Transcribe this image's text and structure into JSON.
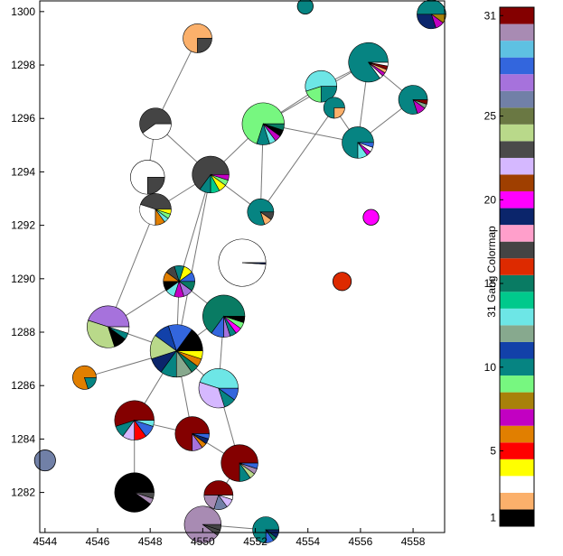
{
  "chart_data": [
    {
      "type": "scatter",
      "marker": "pie",
      "title": "",
      "xlabel": "",
      "ylabel": "",
      "xlim": [
        4543.8,
        4559.2
      ],
      "ylim": [
        1280.5,
        1300.4
      ],
      "x_ticks": [
        4544,
        4546,
        4548,
        4550,
        4552,
        4554,
        4556,
        4558
      ],
      "y_ticks": [
        1282,
        1284,
        1286,
        1288,
        1290,
        1292,
        1294,
        1296,
        1298,
        1300
      ],
      "grid": false,
      "nodes": [
        {
          "id": "n1",
          "x": 4549.8,
          "y": 1299.0,
          "r": 0.55,
          "slices": [
            {
              "c": 2,
              "v": 0.75
            },
            {
              "c": 17,
              "v": 0.25
            }
          ]
        },
        {
          "id": "n2",
          "x": 4553.9,
          "y": 1300.2,
          "r": 0.3,
          "slices": [
            {
              "c": 10,
              "v": 1
            }
          ]
        },
        {
          "id": "n3",
          "x": 4558.7,
          "y": 1299.9,
          "r": 0.55,
          "slices": [
            {
              "c": 10,
              "v": 0.5
            },
            {
              "c": 19,
              "v": 0.3
            },
            {
              "c": 7,
              "v": 0.1
            },
            {
              "c": 8,
              "v": 0.1
            }
          ]
        },
        {
          "id": "n4",
          "x": 4556.3,
          "y": 1298.1,
          "r": 0.75,
          "slices": [
            {
              "c": 10,
              "v": 0.85
            },
            {
              "c": 3,
              "v": 0.03
            },
            {
              "c": 7,
              "v": 0.03
            },
            {
              "c": 2,
              "v": 0.03
            },
            {
              "c": 31,
              "v": 0.03
            },
            {
              "c": 0,
              "v": 0.03
            }
          ]
        },
        {
          "id": "n5",
          "x": 4554.5,
          "y": 1297.2,
          "r": 0.6,
          "slices": [
            {
              "c": 13,
              "v": 0.55
            },
            {
              "c": 9,
              "v": 0.2
            },
            {
              "c": 10,
              "v": 0.25
            }
          ]
        },
        {
          "id": "n6",
          "x": 4555.0,
          "y": 1296.4,
          "r": 0.4,
          "slices": [
            {
              "c": 10,
              "v": 0.75
            },
            {
              "c": 2,
              "v": 0.25
            }
          ]
        },
        {
          "id": "n7",
          "x": 4558.0,
          "y": 1296.7,
          "r": 0.55,
          "slices": [
            {
              "c": 10,
              "v": 0.8
            },
            {
              "c": 7,
              "v": 0.1
            },
            {
              "c": 12,
              "v": 0.05
            },
            {
              "c": 31,
              "v": 0.05
            }
          ]
        },
        {
          "id": "n8",
          "x": 4552.3,
          "y": 1295.8,
          "r": 0.8,
          "slices": [
            {
              "c": 9,
              "v": 0.7
            },
            {
              "c": 10,
              "v": 0.1
            },
            {
              "c": 13,
              "v": 0.05
            },
            {
              "c": 7,
              "v": 0.05
            },
            {
              "c": 1,
              "v": 0.05
            },
            {
              "c": 15,
              "v": 0.05
            }
          ]
        },
        {
          "id": "n9",
          "x": 4555.9,
          "y": 1295.1,
          "r": 0.6,
          "slices": [
            {
              "c": 10,
              "v": 0.75
            },
            {
              "c": 13,
              "v": 0.1
            },
            {
              "c": 7,
              "v": 0.05
            },
            {
              "c": 0,
              "v": 0.05
            },
            {
              "c": 28,
              "v": 0.05
            }
          ]
        },
        {
          "id": "n10",
          "x": 4548.2,
          "y": 1295.8,
          "r": 0.6,
          "slices": [
            {
              "c": 17,
              "v": 0.6
            },
            {
              "c": 3,
              "v": 0.4
            }
          ]
        },
        {
          "id": "n11",
          "x": 4547.9,
          "y": 1293.8,
          "r": 0.65,
          "slices": [
            {
              "c": 3,
              "v": 0.75
            },
            {
              "c": 17,
              "v": 0.25
            }
          ]
        },
        {
          "id": "n12",
          "x": 4550.3,
          "y": 1293.9,
          "r": 0.7,
          "slices": [
            {
              "c": 17,
              "v": 0.65
            },
            {
              "c": 10,
              "v": 0.1
            },
            {
              "c": 14,
              "v": 0.08
            },
            {
              "c": 4,
              "v": 0.07
            },
            {
              "c": 9,
              "v": 0.05
            },
            {
              "c": 7,
              "v": 0.05
            }
          ]
        },
        {
          "id": "n13",
          "x": 4548.2,
          "y": 1292.6,
          "r": 0.6,
          "slices": [
            {
              "c": 17,
              "v": 0.45
            },
            {
              "c": 3,
              "v": 0.3
            },
            {
              "c": 6,
              "v": 0.1
            },
            {
              "c": 13,
              "v": 0.05
            },
            {
              "c": 9,
              "v": 0.05
            },
            {
              "c": 4,
              "v": 0.05
            }
          ]
        },
        {
          "id": "n14",
          "x": 4552.2,
          "y": 1292.5,
          "r": 0.5,
          "slices": [
            {
              "c": 10,
              "v": 0.8
            },
            {
              "c": 2,
              "v": 0.1
            },
            {
              "c": 17,
              "v": 0.1
            }
          ]
        },
        {
          "id": "n15",
          "x": 4556.4,
          "y": 1292.3,
          "r": 0.3,
          "slices": [
            {
              "c": 20,
              "v": 1
            }
          ]
        },
        {
          "id": "n16",
          "x": 4551.5,
          "y": 1290.6,
          "r": 0.9,
          "slices": [
            {
              "c": 0,
              "v": 0.99
            },
            {
              "c": 19,
              "v": 0.01
            }
          ]
        },
        {
          "id": "n17",
          "x": 4555.3,
          "y": 1289.9,
          "r": 0.35,
          "slices": [
            {
              "c": 16,
              "v": 1
            }
          ]
        },
        {
          "id": "n18",
          "x": 4549.1,
          "y": 1289.9,
          "r": 0.6,
          "slices": [
            {
              "c": 28,
              "v": 0.1
            },
            {
              "c": 4,
              "v": 0.1
            },
            {
              "c": 10,
              "v": 0.1
            },
            {
              "c": 17,
              "v": 0.1
            },
            {
              "c": 6,
              "v": 0.1
            },
            {
              "c": 1,
              "v": 0.1
            },
            {
              "c": 13,
              "v": 0.1
            },
            {
              "c": 7,
              "v": 0.1
            },
            {
              "c": 27,
              "v": 0.1
            },
            {
              "c": 15,
              "v": 0.1
            }
          ]
        },
        {
          "id": "n19",
          "x": 4550.8,
          "y": 1288.6,
          "r": 0.8,
          "slices": [
            {
              "c": 15,
              "v": 0.65
            },
            {
              "c": 28,
              "v": 0.1
            },
            {
              "c": 27,
              "v": 0.05
            },
            {
              "c": 10,
              "v": 0.05
            },
            {
              "c": 20,
              "v": 0.05
            },
            {
              "c": 9,
              "v": 0.05
            },
            {
              "c": 1,
              "v": 0.05
            }
          ]
        },
        {
          "id": "n20",
          "x": 4546.4,
          "y": 1288.2,
          "r": 0.8,
          "slices": [
            {
              "c": 27,
              "v": 0.45
            },
            {
              "c": 24,
              "v": 0.35
            },
            {
              "c": 1,
              "v": 0.1
            },
            {
              "c": 10,
              "v": 0.05
            },
            {
              "c": 0,
              "v": 0.05
            }
          ]
        },
        {
          "id": "n21",
          "x": 4549.0,
          "y": 1287.3,
          "r": 1.0,
          "slices": [
            {
              "c": 1,
              "v": 0.15
            },
            {
              "c": 28,
              "v": 0.15
            },
            {
              "c": 11,
              "v": 0.1
            },
            {
              "c": 24,
              "v": 0.15
            },
            {
              "c": 19,
              "v": 0.1
            },
            {
              "c": 10,
              "v": 0.1
            },
            {
              "c": 12,
              "v": 0.1
            },
            {
              "c": 15,
              "v": 0.05
            },
            {
              "c": 6,
              "v": 0.05
            },
            {
              "c": 4,
              "v": 0.05
            }
          ]
        },
        {
          "id": "n22",
          "x": 4545.5,
          "y": 1286.3,
          "r": 0.45,
          "slices": [
            {
              "c": 6,
              "v": 0.8
            },
            {
              "c": 10,
              "v": 0.2
            }
          ]
        },
        {
          "id": "n23",
          "x": 4550.6,
          "y": 1285.9,
          "r": 0.75,
          "slices": [
            {
              "c": 13,
              "v": 0.45
            },
            {
              "c": 22,
              "v": 0.35
            },
            {
              "c": 10,
              "v": 0.1
            },
            {
              "c": 28,
              "v": 0.1
            }
          ]
        },
        {
          "id": "n24",
          "x": 4547.4,
          "y": 1284.7,
          "r": 0.75,
          "slices": [
            {
              "c": 31,
              "v": 0.55
            },
            {
              "c": 10,
              "v": 0.1
            },
            {
              "c": 22,
              "v": 0.1
            },
            {
              "c": 5,
              "v": 0.1
            },
            {
              "c": 28,
              "v": 0.1
            },
            {
              "c": 13,
              "v": 0.05
            }
          ]
        },
        {
          "id": "n25",
          "x": 4549.6,
          "y": 1284.2,
          "r": 0.65,
          "slices": [
            {
              "c": 31,
              "v": 0.75
            },
            {
              "c": 27,
              "v": 0.1
            },
            {
              "c": 6,
              "v": 0.05
            },
            {
              "c": 19,
              "v": 0.05
            },
            {
              "c": 28,
              "v": 0.05
            }
          ]
        },
        {
          "id": "n26",
          "x": 4544.0,
          "y": 1283.2,
          "r": 0.4,
          "slices": [
            {
              "c": 26,
              "v": 1
            }
          ]
        },
        {
          "id": "n27",
          "x": 4551.4,
          "y": 1283.1,
          "r": 0.7,
          "slices": [
            {
              "c": 31,
              "v": 0.75
            },
            {
              "c": 10,
              "v": 0.1
            },
            {
              "c": 24,
              "v": 0.05
            },
            {
              "c": 30,
              "v": 0.05
            },
            {
              "c": 28,
              "v": 0.05
            }
          ]
        },
        {
          "id": "n28",
          "x": 4547.4,
          "y": 1282.0,
          "r": 0.75,
          "slices": [
            {
              "c": 1,
              "v": 0.9
            },
            {
              "c": 30,
              "v": 0.05
            },
            {
              "c": 23,
              "v": 0.05
            }
          ]
        },
        {
          "id": "n29",
          "x": 4550.6,
          "y": 1281.9,
          "r": 0.55,
          "slices": [
            {
              "c": 31,
              "v": 0.5
            },
            {
              "c": 30,
              "v": 0.2
            },
            {
              "c": 26,
              "v": 0.15
            },
            {
              "c": 22,
              "v": 0.1
            },
            {
              "c": 0,
              "v": 0.05
            }
          ]
        },
        {
          "id": "n30",
          "x": 4550.0,
          "y": 1280.8,
          "r": 0.7,
          "slices": [
            {
              "c": 30,
              "v": 0.9
            },
            {
              "c": 23,
              "v": 0.05
            },
            {
              "c": 17,
              "v": 0.05
            }
          ]
        },
        {
          "id": "n31",
          "x": 4552.4,
          "y": 1280.6,
          "r": 0.5,
          "slices": [
            {
              "c": 10,
              "v": 0.75
            },
            {
              "c": 28,
              "v": 0.1
            },
            {
              "c": 15,
              "v": 0.05
            },
            {
              "c": 19,
              "v": 0.1
            }
          ]
        }
      ],
      "edges": [
        [
          "n1",
          "n10"
        ],
        [
          "n10",
          "n11"
        ],
        [
          "n10",
          "n12"
        ],
        [
          "n11",
          "n13"
        ],
        [
          "n13",
          "n12"
        ],
        [
          "n12",
          "n8"
        ],
        [
          "n12",
          "n14"
        ],
        [
          "n12",
          "n18"
        ],
        [
          "n12",
          "n21"
        ],
        [
          "n8",
          "n4"
        ],
        [
          "n8",
          "n5"
        ],
        [
          "n8",
          "n9"
        ],
        [
          "n8",
          "n14"
        ],
        [
          "n5",
          "n4"
        ],
        [
          "n5",
          "n6"
        ],
        [
          "n4",
          "n7"
        ],
        [
          "n4",
          "n9"
        ],
        [
          "n7",
          "n9"
        ],
        [
          "n6",
          "n9"
        ],
        [
          "n6",
          "n14"
        ],
        [
          "n13",
          "n20"
        ],
        [
          "n18",
          "n20"
        ],
        [
          "n18",
          "n21"
        ],
        [
          "n18",
          "n19"
        ],
        [
          "n19",
          "n21"
        ],
        [
          "n19",
          "n23"
        ],
        [
          "n21",
          "n20"
        ],
        [
          "n21",
          "n22"
        ],
        [
          "n21",
          "n23"
        ],
        [
          "n21",
          "n24"
        ],
        [
          "n21",
          "n25"
        ],
        [
          "n23",
          "n27"
        ],
        [
          "n24",
          "n25"
        ],
        [
          "n24",
          "n28"
        ],
        [
          "n25",
          "n27"
        ],
        [
          "n27",
          "n29"
        ],
        [
          "n29",
          "n30"
        ],
        [
          "n30",
          "n31"
        ]
      ]
    },
    {
      "type": "heatmap",
      "role": "colorbar",
      "ylabel": "31 Gang Colormap",
      "ylim": [
        0.5,
        31.5
      ],
      "ticks": [
        1,
        5,
        10,
        15,
        20,
        25,
        31
      ],
      "colors": [
        "#000000",
        "#fbb06b",
        "#ffffff",
        "#ffff00",
        "#ff0000",
        "#e17f00",
        "#c200c2",
        "#a8810a",
        "#77f780",
        "#068482",
        "#1241a9",
        "#87a98e",
        "#6de6e6",
        "#00c98c",
        "#097b63",
        "#dd2a00",
        "#444444",
        "#ff9fcb",
        "#0b256b",
        "#ff00ff",
        "#9f3f00",
        "#d5b8ff",
        "#4a4a4a",
        "#b9d98a",
        "#6a7843",
        "#7180a7",
        "#a672dc",
        "#3366dd",
        "#5ec1e2",
        "#a88bb3",
        "#840000"
      ]
    }
  ]
}
